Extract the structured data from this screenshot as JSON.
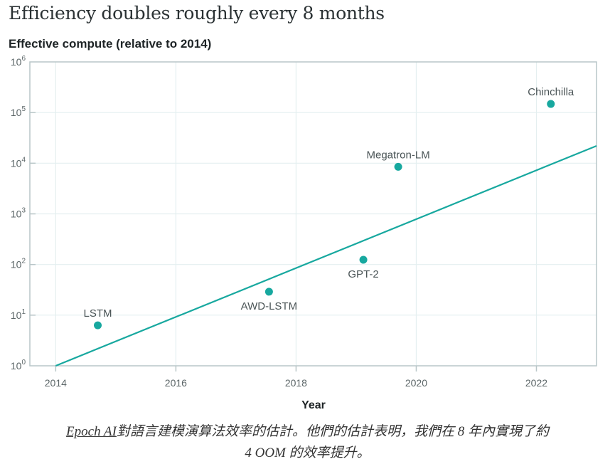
{
  "colors": {
    "accent": "#17a89f",
    "grid": "#e4eff0",
    "axis": "#b9c6c8"
  },
  "chart_data": {
    "type": "scatter",
    "title": "Efficiency doubles roughly every 8 months",
    "subtitle": "Effective compute (relative to 2014)",
    "xlabel": "Year",
    "ylabel": "Effective compute (relative to 2014)",
    "yscale": "log",
    "xlim": [
      2013.57,
      2023.0
    ],
    "ylim": [
      1,
      1000000
    ],
    "xticks": [
      2014,
      2016,
      2018,
      2020,
      2022
    ],
    "xtick_labels": [
      "2014",
      "2016",
      "2018",
      "2020",
      "2022"
    ],
    "yticks": [
      1,
      10,
      100,
      1000,
      10000,
      100000,
      1000000
    ],
    "ytick_labels": [
      {
        "base": "10",
        "exp": "0"
      },
      {
        "base": "10",
        "exp": "1"
      },
      {
        "base": "10",
        "exp": "2"
      },
      {
        "base": "10",
        "exp": "3"
      },
      {
        "base": "10",
        "exp": "4"
      },
      {
        "base": "10",
        "exp": "5"
      },
      {
        "base": "10",
        "exp": "6"
      }
    ],
    "grid": true,
    "points": [
      {
        "name": "LSTM",
        "x": 2014.7,
        "y": 6.3,
        "label_pos": "above"
      },
      {
        "name": "AWD-LSTM",
        "x": 2017.55,
        "y": 29,
        "label_pos": "below"
      },
      {
        "name": "GPT-2",
        "x": 2019.12,
        "y": 124,
        "label_pos": "below"
      },
      {
        "name": "Megatron-LM",
        "x": 2019.7,
        "y": 8500,
        "label_pos": "above"
      },
      {
        "name": "Chinchilla",
        "x": 2022.24,
        "y": 148000,
        "label_pos": "above"
      }
    ],
    "trend_line": {
      "x": [
        2014,
        2023.0
      ],
      "y": [
        1,
        22000
      ],
      "description": "doubling every 8 months"
    }
  },
  "caption": {
    "link_text": "Epoch AI",
    "line1": "對語言建模演算法效率的估計。他們的估計表明，我們在 8 年內實現了約",
    "line2": "4 OOM 的效率提升。"
  }
}
